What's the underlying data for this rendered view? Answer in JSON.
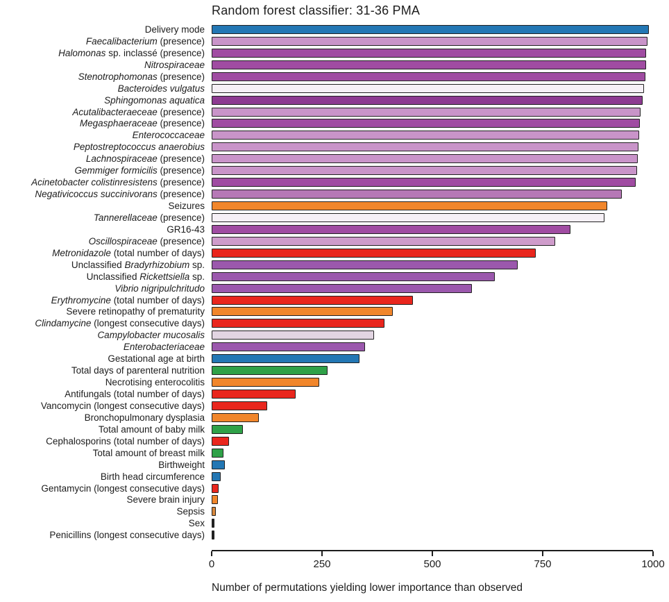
{
  "chart_data": {
    "type": "bar",
    "orientation": "horizontal",
    "title": "Random forest classifier: 31-36 PMA",
    "xlabel": "Number of permutations yielding lower importance than observed",
    "xlim": [
      0,
      1000
    ],
    "xticks": [
      0,
      250,
      500,
      750,
      1000
    ],
    "grid": false,
    "legend": "none",
    "bar_outline_color": "#212121",
    "colors": {
      "blue": "#2377b4",
      "orchid": "#c994c9",
      "orchid_mid": "#b678b6",
      "purple": "#a04ca2",
      "purple_dark": "#8d3a91",
      "violet": "#9b58ad",
      "pink_orchid": "#cf9ccb",
      "near_white": "#f6f0f6",
      "pale_lav": "#e2d5e2",
      "orange": "#f1862b",
      "sepsis_orange": "#d8883d",
      "red": "#e9261d",
      "green": "#2fa148",
      "black": "#222222"
    },
    "rows": [
      {
        "value": 990,
        "color": "blue",
        "label_parts": [
          {
            "t": "Delivery mode",
            "i": false
          }
        ]
      },
      {
        "value": 987,
        "color": "orchid",
        "label_parts": [
          {
            "t": "Faecalibacterium",
            "i": true
          },
          {
            "t": " (presence)",
            "i": false
          }
        ]
      },
      {
        "value": 985,
        "color": "purple",
        "label_parts": [
          {
            "t": "Halomonas",
            "i": true
          },
          {
            "t": " sp. inclassé (presence)",
            "i": false
          }
        ]
      },
      {
        "value": 984,
        "color": "purple",
        "label_parts": [
          {
            "t": "Nitrospiraceae",
            "i": true
          }
        ]
      },
      {
        "value": 982,
        "color": "purple",
        "label_parts": [
          {
            "t": "Stenotrophomonas",
            "i": true
          },
          {
            "t": " (presence)",
            "i": false
          }
        ]
      },
      {
        "value": 980,
        "color": "near_white",
        "label_parts": [
          {
            "t": "Bacteroides vulgatus",
            "i": true
          }
        ]
      },
      {
        "value": 976,
        "color": "purple_dark",
        "label_parts": [
          {
            "t": "Sphingomonas aquatica",
            "i": true
          }
        ]
      },
      {
        "value": 972,
        "color": "orchid",
        "label_parts": [
          {
            "t": "Acutalibacteraeceae",
            "i": true
          },
          {
            "t": " (presence)",
            "i": false
          }
        ]
      },
      {
        "value": 970,
        "color": "purple",
        "label_parts": [
          {
            "t": "Megasphaeraceae",
            "i": true
          },
          {
            "t": " (presence)",
            "i": false
          }
        ]
      },
      {
        "value": 968,
        "color": "orchid",
        "label_parts": [
          {
            "t": "Enterococcaceae",
            "i": true
          }
        ]
      },
      {
        "value": 967,
        "color": "orchid",
        "label_parts": [
          {
            "t": "Peptostreptococcus anaerobius",
            "i": true
          }
        ]
      },
      {
        "value": 965,
        "color": "orchid",
        "label_parts": [
          {
            "t": "Lachnospiraceae",
            "i": true
          },
          {
            "t": " (presence)",
            "i": false
          }
        ]
      },
      {
        "value": 964,
        "color": "orchid",
        "label_parts": [
          {
            "t": "Gemmiger formicilis",
            "i": true
          },
          {
            "t": " (presence)",
            "i": false
          }
        ]
      },
      {
        "value": 960,
        "color": "purple",
        "label_parts": [
          {
            "t": "Acinetobacter colistinresistens",
            "i": true
          },
          {
            "t": " (presence)",
            "i": false
          }
        ]
      },
      {
        "value": 930,
        "color": "orchid_mid",
        "label_parts": [
          {
            "t": "Negativicoccus succinivorans",
            "i": true
          },
          {
            "t": " (presence)",
            "i": false
          }
        ]
      },
      {
        "value": 897,
        "color": "orange",
        "label_parts": [
          {
            "t": "Seizures",
            "i": false
          }
        ]
      },
      {
        "value": 890,
        "color": "near_white",
        "label_parts": [
          {
            "t": "Tannerellaceae",
            "i": true
          },
          {
            "t": " (presence)",
            "i": false
          }
        ]
      },
      {
        "value": 813,
        "color": "purple",
        "label_parts": [
          {
            "t": "GR16-43",
            "i": false
          }
        ]
      },
      {
        "value": 778,
        "color": "pink_orchid",
        "label_parts": [
          {
            "t": "Oscillospiraceae",
            "i": true
          },
          {
            "t": " (presence)",
            "i": false
          }
        ]
      },
      {
        "value": 735,
        "color": "red",
        "label_parts": [
          {
            "t": "Metronidazole",
            "i": true
          },
          {
            "t": " (total number of days)",
            "i": false
          }
        ]
      },
      {
        "value": 693,
        "color": "violet",
        "label_parts": [
          {
            "t": "Unclassified ",
            "i": false
          },
          {
            "t": "Bradyrhizobium",
            "i": true
          },
          {
            "t": " sp.",
            "i": false
          }
        ]
      },
      {
        "value": 642,
        "color": "violet",
        "label_parts": [
          {
            "t": "Unclassified ",
            "i": false
          },
          {
            "t": "Rickettsiella",
            "i": true
          },
          {
            "t": " sp.",
            "i": false
          }
        ]
      },
      {
        "value": 590,
        "color": "violet",
        "label_parts": [
          {
            "t": "Vibrio nigripulchritudo",
            "i": true
          }
        ]
      },
      {
        "value": 456,
        "color": "red",
        "label_parts": [
          {
            "t": "Erythromycine",
            "i": true
          },
          {
            "t": " (total number of days)",
            "i": false
          }
        ]
      },
      {
        "value": 410,
        "color": "orange",
        "label_parts": [
          {
            "t": "Severe retinopathy of prematurity",
            "i": false
          }
        ]
      },
      {
        "value": 391,
        "color": "red",
        "label_parts": [
          {
            "t": "Clindamycine",
            "i": true
          },
          {
            "t": " (longest consecutive days)",
            "i": false
          }
        ]
      },
      {
        "value": 368,
        "color": "pale_lav",
        "label_parts": [
          {
            "t": "Campylobacter mucosalis",
            "i": true
          }
        ]
      },
      {
        "value": 347,
        "color": "violet",
        "label_parts": [
          {
            "t": "Enterobacteriaceae",
            "i": true
          }
        ]
      },
      {
        "value": 335,
        "color": "blue",
        "label_parts": [
          {
            "t": "Gestational age at birth",
            "i": false
          }
        ]
      },
      {
        "value": 262,
        "color": "green",
        "label_parts": [
          {
            "t": "Total days of parenteral nutrition",
            "i": false
          }
        ]
      },
      {
        "value": 243,
        "color": "orange",
        "label_parts": [
          {
            "t": "Necrotising enterocolitis",
            "i": false
          }
        ]
      },
      {
        "value": 191,
        "color": "red",
        "label_parts": [
          {
            "t": "Antifungals (total number of days)",
            "i": false
          }
        ]
      },
      {
        "value": 126,
        "color": "red",
        "label_parts": [
          {
            "t": "Vancomycin (longest consecutive days)",
            "i": false
          }
        ]
      },
      {
        "value": 107,
        "color": "orange",
        "label_parts": [
          {
            "t": "Bronchopulmonary dysplasia",
            "i": false
          }
        ]
      },
      {
        "value": 70,
        "color": "green",
        "label_parts": [
          {
            "t": "Total amount of baby milk",
            "i": false
          }
        ]
      },
      {
        "value": 39,
        "color": "red",
        "label_parts": [
          {
            "t": "Cephalosporins (total number of days)",
            "i": false
          }
        ]
      },
      {
        "value": 27,
        "color": "green",
        "label_parts": [
          {
            "t": "Total amount of breast milk",
            "i": false
          }
        ]
      },
      {
        "value": 30,
        "color": "blue",
        "label_parts": [
          {
            "t": "Birthweight",
            "i": false
          }
        ]
      },
      {
        "value": 21,
        "color": "blue",
        "label_parts": [
          {
            "t": "Birth head circumference",
            "i": false
          }
        ]
      },
      {
        "value": 16,
        "color": "red",
        "label_parts": [
          {
            "t": "Gentamycin (longest consecutive days)",
            "i": false
          }
        ]
      },
      {
        "value": 14,
        "color": "orange",
        "label_parts": [
          {
            "t": "Severe brain injury",
            "i": false
          }
        ]
      },
      {
        "value": 9,
        "color": "sepsis_orange",
        "label_parts": [
          {
            "t": "Sepsis",
            "i": false
          }
        ]
      },
      {
        "value": 6,
        "color": "black",
        "label_parts": [
          {
            "t": "Sex",
            "i": false
          }
        ]
      },
      {
        "value": 4,
        "color": "black",
        "label_parts": [
          {
            "t": "Penicillins (longest consecutive days)",
            "i": false
          }
        ]
      }
    ]
  }
}
